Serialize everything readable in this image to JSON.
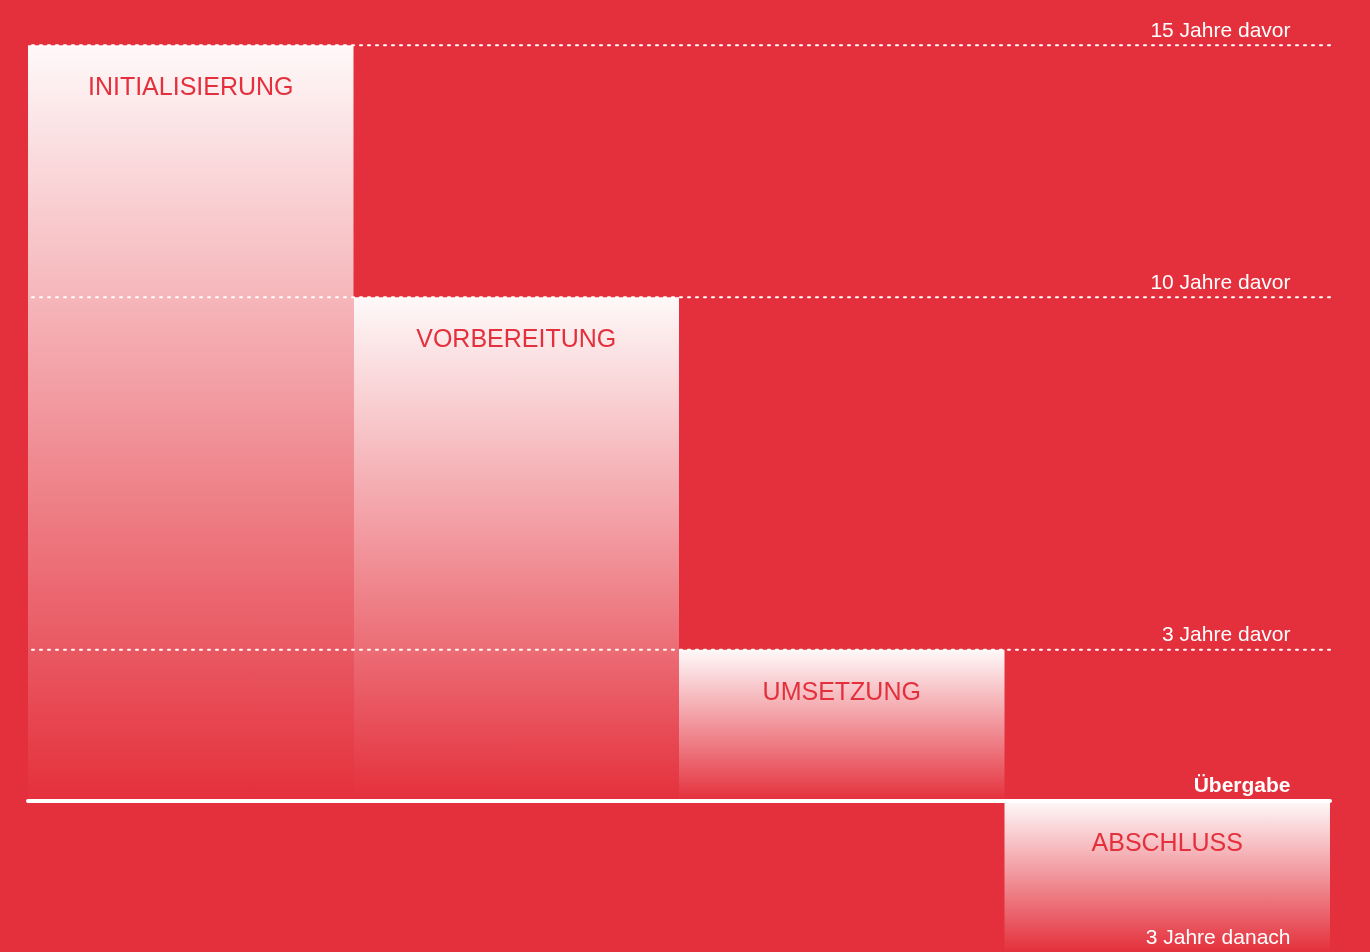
{
  "chart_data": {
    "type": "bar",
    "categories": [
      "INITIALISIERUNG",
      "VORBEREITUNG",
      "UMSETZUNG",
      "ABSCHLUSS"
    ],
    "values": [
      15,
      10,
      3,
      -3
    ],
    "color": "#ffffff",
    "ylim": [
      -3,
      15.9
    ],
    "yticks": [
      {
        "value": 15,
        "label": "15 Jahre davor"
      },
      {
        "value": 10,
        "label": "10 Jahre davor"
      },
      {
        "value": 3,
        "label": "3 Jahre davor"
      },
      {
        "value": 0,
        "label": "Übergabe"
      },
      {
        "value": -3,
        "label": "3 Jahre danach"
      }
    ],
    "ref_lines": [
      {
        "axis": "y",
        "value": 15,
        "color": "#ffffff",
        "line_style": "dotted"
      },
      {
        "axis": "y",
        "value": 10,
        "color": "#ffffff",
        "line_style": "dotted"
      },
      {
        "axis": "y",
        "value": 3,
        "color": "#ffffff",
        "line_style": "dotted"
      },
      {
        "axis": "y",
        "value": 0,
        "color": "#ffffff",
        "line_style": "solid"
      }
    ],
    "tick_labels": "y",
    "grid": false
  }
}
